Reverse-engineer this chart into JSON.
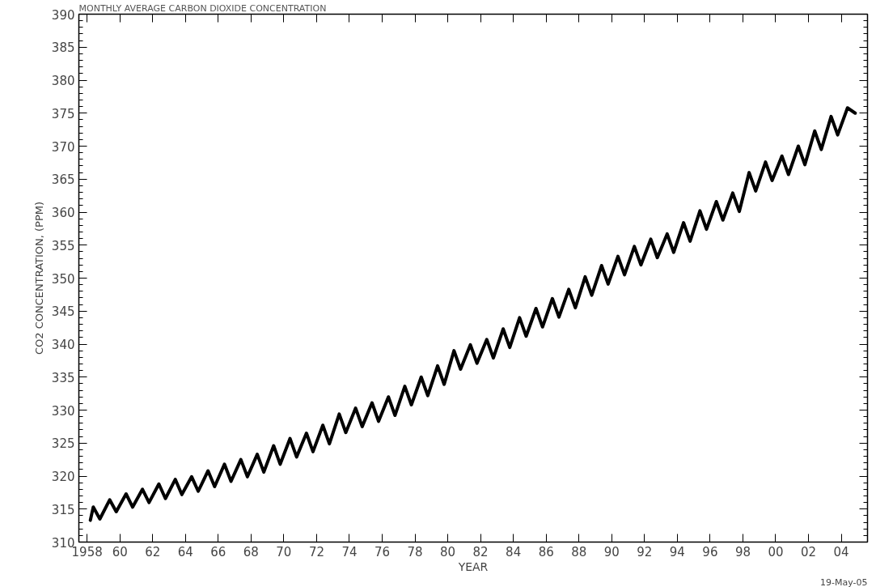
{
  "chart_data": {
    "type": "line",
    "title": "MONTHLY AVERAGE CARBON DIOXIDE CONCENTRATION",
    "xlabel": "YEAR",
    "ylabel": "CO2 CONCENTRATION, (PPM)",
    "annotations": [
      "19-May-05"
    ],
    "x": [
      1958.2,
      1958.38,
      1958.78,
      1959.38,
      1959.78,
      1960.38,
      1960.78,
      1961.38,
      1961.78,
      1962.38,
      1962.78,
      1963.38,
      1963.78,
      1964.38,
      1964.78,
      1965.38,
      1965.78,
      1966.38,
      1966.78,
      1967.38,
      1967.78,
      1968.38,
      1968.78,
      1969.38,
      1969.78,
      1970.38,
      1970.78,
      1971.38,
      1971.78,
      1972.38,
      1972.78,
      1973.38,
      1973.78,
      1974.38,
      1974.78,
      1975.38,
      1975.78,
      1976.38,
      1976.78,
      1977.38,
      1977.78,
      1978.38,
      1978.78,
      1979.38,
      1979.78,
      1980.38,
      1980.78,
      1981.38,
      1981.78,
      1982.38,
      1982.78,
      1983.38,
      1983.78,
      1984.38,
      1984.78,
      1985.38,
      1985.78,
      1986.38,
      1986.78,
      1987.38,
      1987.78,
      1988.38,
      1988.78,
      1989.38,
      1989.78,
      1990.38,
      1990.78,
      1991.38,
      1991.78,
      1992.38,
      1992.78,
      1993.38,
      1993.78,
      1994.38,
      1994.78,
      1995.38,
      1995.78,
      1996.38,
      1996.78,
      1997.38,
      1997.78,
      1998.38,
      1998.78,
      1999.38,
      1999.78,
      2000.38,
      2000.78,
      2001.38,
      2001.78,
      2002.38,
      2002.78,
      2003.38,
      2003.78,
      2004.38,
      2004.85
    ],
    "series": [
      {
        "color": "#000000",
        "values": [
          313.3,
          315.3,
          313.5,
          316.4,
          314.6,
          317.3,
          315.3,
          318.0,
          316.0,
          318.8,
          316.6,
          319.5,
          317.2,
          319.9,
          317.7,
          320.8,
          318.4,
          321.8,
          319.2,
          322.5,
          319.9,
          323.3,
          320.6,
          324.6,
          321.8,
          325.7,
          322.9,
          326.5,
          323.7,
          327.7,
          324.9,
          329.4,
          326.6,
          330.3,
          327.5,
          331.1,
          328.3,
          332.0,
          329.2,
          333.6,
          330.8,
          335.0,
          332.2,
          336.7,
          333.9,
          339.0,
          336.2,
          339.9,
          337.1,
          340.7,
          337.9,
          342.3,
          339.5,
          344.0,
          341.2,
          345.4,
          342.6,
          346.9,
          344.1,
          348.3,
          345.5,
          350.2,
          347.4,
          351.9,
          349.1,
          353.3,
          350.5,
          354.8,
          352.0,
          355.9,
          353.1,
          356.7,
          353.9,
          358.4,
          355.6,
          360.2,
          357.4,
          361.6,
          358.8,
          362.9,
          360.1,
          366.0,
          363.2,
          367.6,
          364.8,
          368.5,
          365.7,
          370.0,
          367.2,
          372.3,
          369.5,
          374.5,
          371.7,
          375.8,
          375.0
        ]
      }
    ],
    "xlim": [
      1957.5,
      2005.6
    ],
    "xticks": [
      1958,
      {
        "value": 1960,
        "label": "60"
      },
      {
        "value": 1962,
        "label": "62"
      },
      {
        "value": 1964,
        "label": "64"
      },
      {
        "value": 1966,
        "label": "66"
      },
      {
        "value": 1968,
        "label": "68"
      },
      {
        "value": 1970,
        "label": "70"
      },
      {
        "value": 1972,
        "label": "72"
      },
      {
        "value": 1974,
        "label": "74"
      },
      {
        "value": 1976,
        "label": "76"
      },
      {
        "value": 1978,
        "label": "78"
      },
      {
        "value": 1980,
        "label": "80"
      },
      {
        "value": 1982,
        "label": "82"
      },
      {
        "value": 1984,
        "label": "84"
      },
      {
        "value": 1986,
        "label": "86"
      },
      {
        "value": 1988,
        "label": "88"
      },
      {
        "value": 1990,
        "label": "90"
      },
      {
        "value": 1992,
        "label": "92"
      },
      {
        "value": 1994,
        "label": "94"
      },
      {
        "value": 1996,
        "label": "96"
      },
      {
        "value": 1998,
        "label": "98"
      },
      {
        "value": 2000,
        "label": "00"
      },
      {
        "value": 2002,
        "label": "02"
      },
      {
        "value": 2004,
        "label": "04"
      }
    ],
    "ylim": [
      310,
      390
    ],
    "yticks": [
      310,
      315,
      320,
      325,
      330,
      335,
      340,
      345,
      350,
      355,
      360,
      365,
      370,
      375,
      380,
      385,
      390
    ],
    "grid": false,
    "marker": "none",
    "line_style": "solid"
  }
}
